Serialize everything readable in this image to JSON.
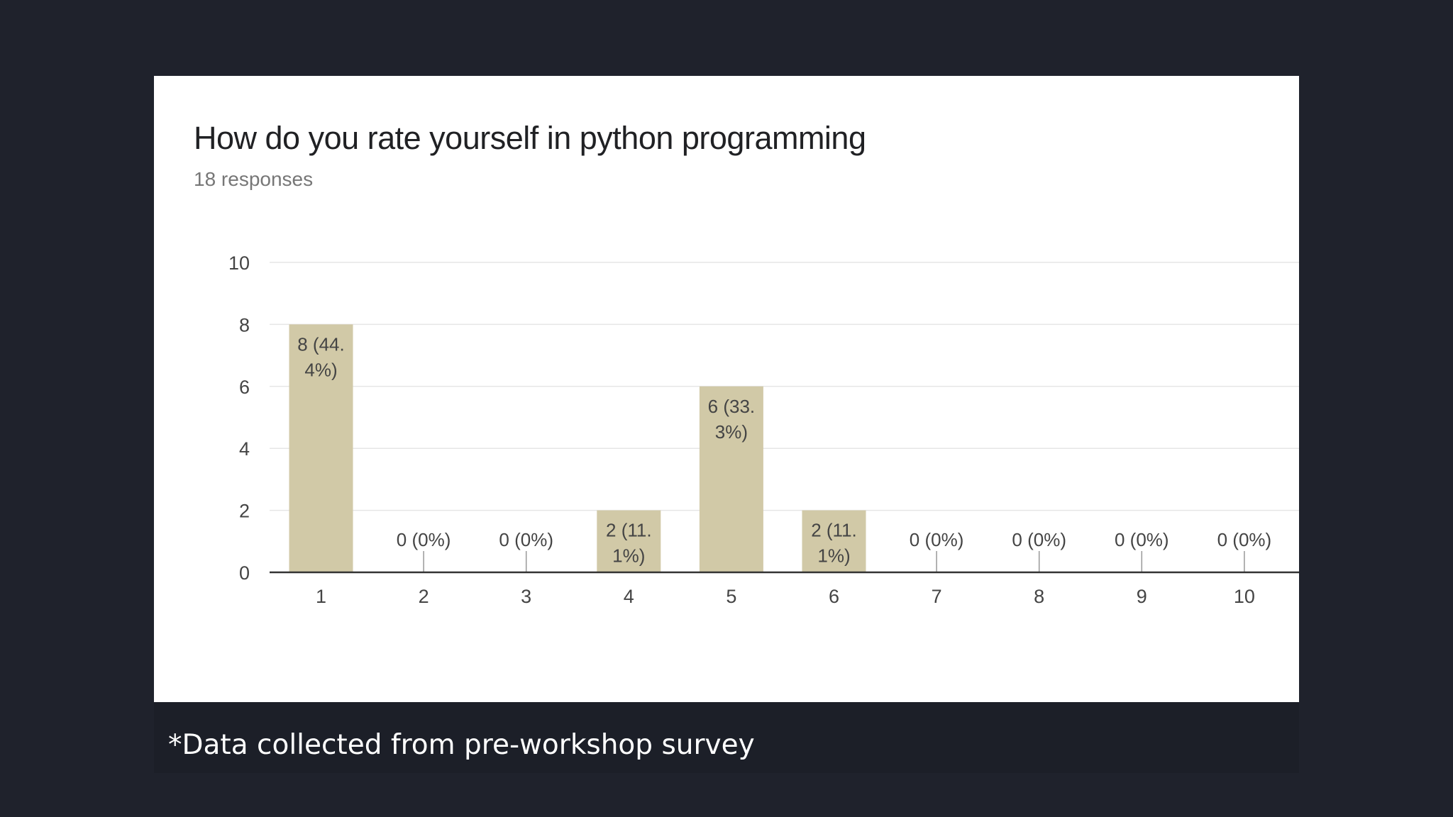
{
  "chart_data": {
    "type": "bar",
    "title": "How do you rate yourself in python programming",
    "subtitle": "18 responses",
    "categories": [
      "1",
      "2",
      "3",
      "4",
      "5",
      "6",
      "7",
      "8",
      "9",
      "10"
    ],
    "values": [
      8,
      0,
      0,
      2,
      6,
      2,
      0,
      0,
      0,
      0
    ],
    "data_labels": [
      [
        "8 (44.",
        "4%)"
      ],
      [
        "0 (0%)"
      ],
      [
        "0 (0%)"
      ],
      [
        "2 (11.",
        "1%)"
      ],
      [
        "6 (33.",
        "3%)"
      ],
      [
        "2 (11.",
        "1%)"
      ],
      [
        "0 (0%)"
      ],
      [
        "0 (0%)"
      ],
      [
        "0 (0%)"
      ],
      [
        "0 (0%)"
      ]
    ],
    "y_ticks": [
      0,
      2,
      4,
      6,
      8,
      10
    ],
    "ylim": [
      0,
      10
    ],
    "xlabel": "",
    "ylabel": "",
    "grid": true,
    "bar_color": "#d1c9a7"
  },
  "footnote": "*Data collected from pre-workshop survey"
}
